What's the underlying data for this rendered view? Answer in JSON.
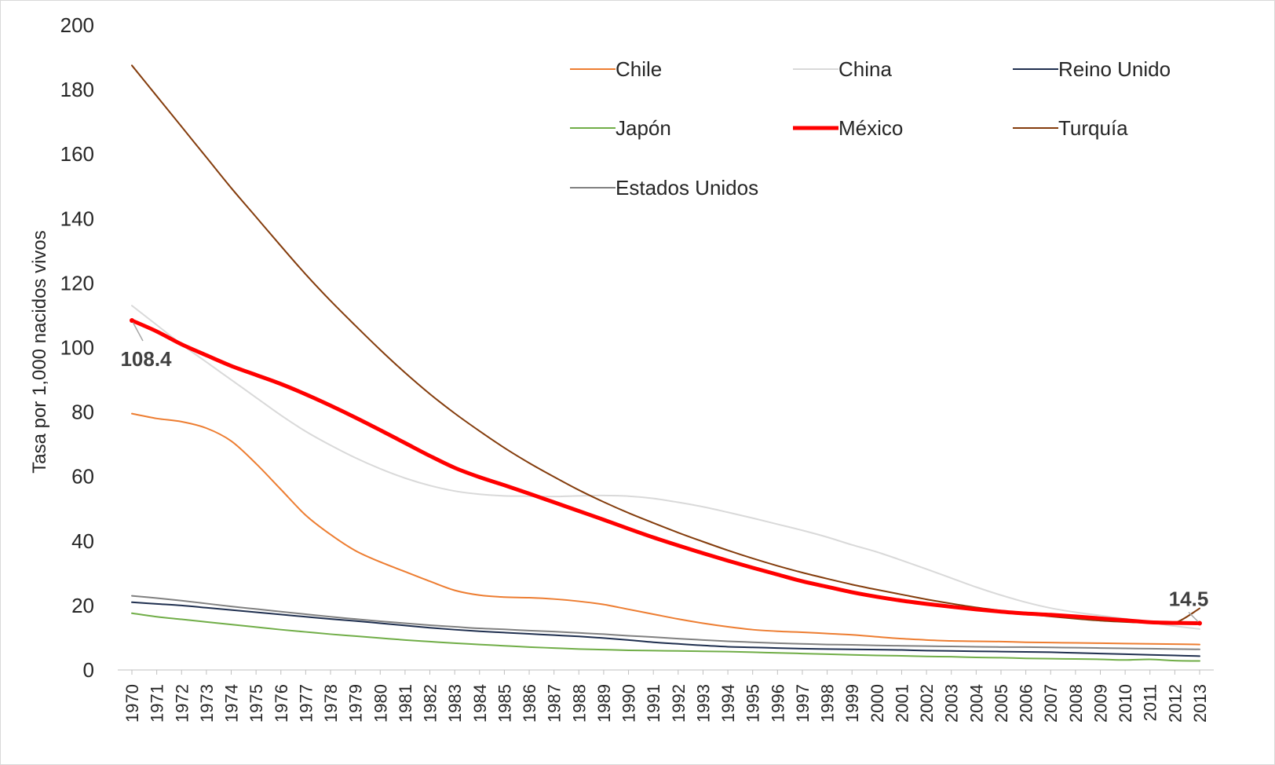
{
  "chart_data": {
    "type": "line",
    "title": "",
    "xlabel": "",
    "ylabel": "Tasa por 1,000 nacidos vivos",
    "ylim": [
      0,
      200
    ],
    "yticks": [
      "0",
      "20",
      "40",
      "60",
      "80",
      "100",
      "120",
      "140",
      "160",
      "180",
      "200"
    ],
    "x": [
      "1970",
      "1971",
      "1972",
      "1973",
      "1974",
      "1975",
      "1976",
      "1977",
      "1978",
      "1979",
      "1980",
      "1981",
      "1982",
      "1983",
      "1984",
      "1985",
      "1986",
      "1987",
      "1988",
      "1989",
      "1990",
      "1991",
      "1992",
      "1993",
      "1994",
      "1995",
      "1996",
      "1997",
      "1998",
      "1999",
      "2000",
      "2001",
      "2002",
      "2003",
      "2004",
      "2005",
      "2006",
      "2007",
      "2008",
      "2009",
      "2010",
      "2011",
      "2012",
      "2013"
    ],
    "grid": false,
    "legend_position": "top-right",
    "series": [
      {
        "name": "Chile",
        "color": "#ed7d31",
        "width": 2,
        "values": [
          79.5,
          78,
          77,
          75,
          71,
          64,
          56,
          48,
          42,
          37,
          33.5,
          30.5,
          27.5,
          24.7,
          23.2,
          22.6,
          22.4,
          22,
          21.3,
          20.3,
          18.8,
          17.3,
          15.8,
          14.5,
          13.4,
          12.5,
          12,
          11.7,
          11.3,
          10.9,
          10.3,
          9.7,
          9.3,
          9,
          8.9,
          8.8,
          8.6,
          8.5,
          8.4,
          8.3,
          8.2,
          8.1,
          8,
          7.9
        ]
      },
      {
        "name": "China",
        "color": "#d9d9d9",
        "width": 2,
        "values": [
          113,
          107,
          101,
          95.5,
          90,
          84.5,
          79,
          74,
          69.7,
          65.8,
          62.4,
          59.5,
          57.2,
          55.5,
          54.5,
          54,
          53.9,
          53.8,
          54,
          54.1,
          53.9,
          53.2,
          52,
          50.6,
          48.9,
          47.1,
          45.2,
          43.3,
          41.2,
          38.8,
          36.6,
          34,
          31.3,
          28.5,
          25.7,
          23.2,
          21,
          19.2,
          17.9,
          16.9,
          15.9,
          14.8,
          13.6,
          12.7
        ]
      },
      {
        "name": "Reino Unido",
        "color": "#1f2f4f",
        "width": 2,
        "values": [
          21,
          20.5,
          20,
          19.3,
          18.6,
          17.9,
          17.2,
          16.5,
          15.8,
          15.2,
          14.5,
          13.8,
          13.1,
          12.5,
          12,
          11.6,
          11.2,
          10.8,
          10.4,
          9.9,
          9.3,
          8.6,
          8.1,
          7.6,
          7.2,
          7,
          6.8,
          6.6,
          6.5,
          6.4,
          6.3,
          6.2,
          6,
          5.9,
          5.8,
          5.7,
          5.6,
          5.5,
          5.3,
          5.1,
          4.9,
          4.7,
          4.5,
          4.3
        ]
      },
      {
        "name": "Japón",
        "color": "#70ad47",
        "width": 2,
        "values": [
          17.6,
          16.5,
          15.7,
          14.9,
          14.1,
          13.3,
          12.5,
          11.8,
          11.1,
          10.5,
          9.9,
          9.3,
          8.8,
          8.3,
          7.9,
          7.5,
          7.1,
          6.8,
          6.5,
          6.3,
          6.1,
          6,
          5.9,
          5.8,
          5.7,
          5.5,
          5.3,
          5.1,
          4.9,
          4.7,
          4.5,
          4.4,
          4.2,
          4.1,
          3.9,
          3.8,
          3.6,
          3.5,
          3.4,
          3.3,
          3.1,
          3.3,
          2.9,
          2.8
        ]
      },
      {
        "name": "México",
        "color": "#ff0000",
        "width": 5,
        "values": [
          108.4,
          105,
          101,
          97.6,
          94.3,
          91.5,
          88.7,
          85.5,
          82,
          78.3,
          74.4,
          70.4,
          66.4,
          62.7,
          59.8,
          57.3,
          54.7,
          52,
          49.3,
          46.6,
          43.8,
          41.1,
          38.6,
          36.2,
          33.9,
          31.7,
          29.6,
          27.5,
          25.8,
          24.1,
          22.7,
          21.5,
          20.5,
          19.6,
          18.8,
          18.1,
          17.5,
          17.1,
          16.6,
          16,
          15.4,
          14.8,
          14.6,
          14.5
        ]
      },
      {
        "name": "Turquía",
        "color": "#843c0c",
        "width": 2,
        "values": [
          187.5,
          178,
          168.5,
          159,
          149.5,
          140.5,
          131.5,
          122.7,
          114.5,
          106.8,
          99.3,
          92.2,
          85.6,
          79.6,
          74.1,
          68.9,
          64.2,
          59.9,
          55.8,
          52.1,
          48.7,
          45.6,
          42.6,
          39.8,
          37.1,
          34.6,
          32.3,
          30.2,
          28.3,
          26.5,
          24.9,
          23.4,
          21.9,
          20.6,
          19.4,
          18.4,
          17.4,
          16.6,
          15.9,
          15.3,
          14.9,
          14.6,
          14.6,
          19.1
        ]
      },
      {
        "name": "Estados Unidos",
        "color": "#808080",
        "width": 2,
        "values": [
          23,
          22.3,
          21.5,
          20.6,
          19.7,
          18.9,
          18.1,
          17.3,
          16.5,
          15.8,
          15.1,
          14.5,
          13.9,
          13.4,
          12.9,
          12.6,
          12.2,
          11.9,
          11.5,
          11.1,
          10.6,
          10.2,
          9.7,
          9.3,
          8.9,
          8.6,
          8.3,
          8.1,
          7.9,
          7.8,
          7.6,
          7.5,
          7.4,
          7.3,
          7.2,
          7.1,
          7.1,
          7,
          6.9,
          6.8,
          6.7,
          6.6,
          6.5,
          6.4
        ]
      }
    ],
    "annotations": [
      {
        "text": "108.4",
        "series": "México",
        "x": "1970"
      },
      {
        "text": "14.5",
        "series": "México",
        "x": "2013"
      }
    ]
  }
}
